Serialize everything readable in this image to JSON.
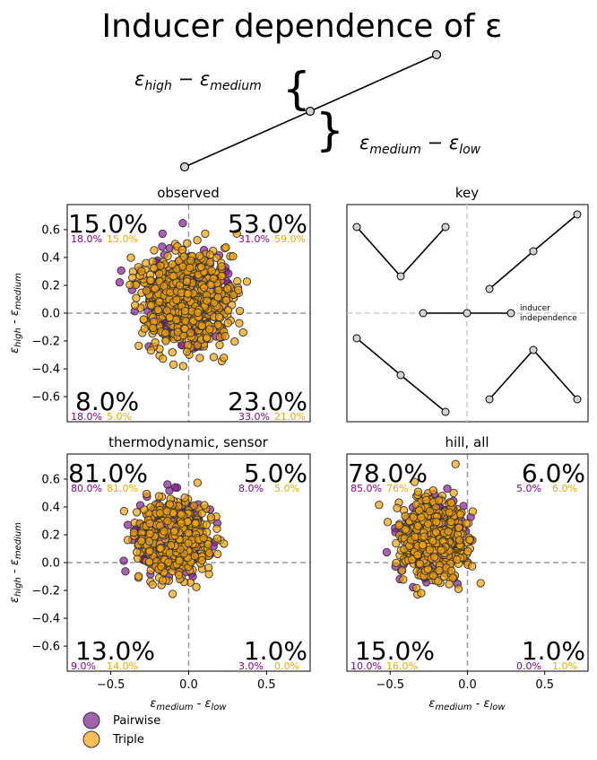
{
  "figure_title": "Inducer dependence of ε",
  "diagram": {
    "label_upper": "εhigh − εmedium",
    "label_lower": "εmedium − εlow",
    "brace_left": "{",
    "brace_right": "}"
  },
  "axis_labels": {
    "y": "εhigh - εmedium",
    "x": "εmedium - εlow"
  },
  "ticks": {
    "y": [
      "0.6",
      "0.4",
      "0.2",
      "0.0",
      "−0.2",
      "−0.4",
      "−0.6"
    ],
    "x": [
      "−0.5",
      "0.0",
      "0.5"
    ]
  },
  "key": {
    "title": "key",
    "inducer_label_1": "inducer",
    "inducer_label_2": "independence"
  },
  "legend": [
    {
      "label": "Pairwise",
      "color": "#7b1f8c"
    },
    {
      "label": "Triple",
      "color": "#f7a81b"
    }
  ],
  "colors": {
    "pairwise": "#8a1a98",
    "triple": "#f5a300",
    "pairwise_text": "#8b008b",
    "triple_text": "#f0a800"
  },
  "chart_data": [
    {
      "type": "scatter",
      "title": "observed",
      "xlim": [
        -0.78,
        0.78
      ],
      "ylim": [
        -0.78,
        0.78
      ],
      "xlabel": "",
      "ylabel": "εhigh - εmedium",
      "center": [
        0.0,
        0.1
      ],
      "spread": [
        0.15,
        0.17
      ],
      "quadrants": {
        "tl": {
          "total": "15.0%",
          "pairwise": "18.0%",
          "triple": "15.0%"
        },
        "tr": {
          "total": "53.0%",
          "pairwise": "31.0%",
          "triple": "59.0%"
        },
        "bl": {
          "total": "8.0%",
          "pairwise": "18.0%",
          "triple": "5.0%"
        },
        "br": {
          "total": "23.0%",
          "pairwise": "33.0%",
          "triple": "21.0%"
        }
      }
    },
    {
      "type": "scatter",
      "title": "thermodynamic, sensor",
      "xlim": [
        -0.78,
        0.78
      ],
      "ylim": [
        -0.78,
        0.78
      ],
      "xlabel": "εmedium - εlow",
      "ylabel": "εhigh - εmedium",
      "center": [
        -0.1,
        0.17
      ],
      "spread": [
        0.11,
        0.13
      ],
      "quadrants": {
        "tl": {
          "total": "81.0%",
          "pairwise": "80.0%",
          "triple": "81.0%"
        },
        "tr": {
          "total": "5.0%",
          "pairwise": "8.0%",
          "triple": "5.0%"
        },
        "bl": {
          "total": "13.0%",
          "pairwise": "9.0%",
          "triple": "14.0%"
        },
        "br": {
          "total": "1.0%",
          "pairwise": "3.0%",
          "triple": "0.0%"
        }
      }
    },
    {
      "type": "scatter",
      "title": "hill, all",
      "xlim": [
        -0.78,
        0.78
      ],
      "ylim": [
        -0.78,
        0.78
      ],
      "xlabel": "εmedium - εlow",
      "ylabel": "",
      "center": [
        -0.22,
        0.17
      ],
      "spread": [
        0.1,
        0.14
      ],
      "quadrants": {
        "tl": {
          "total": "78.0%",
          "pairwise": "85.0%",
          "triple": "76%"
        },
        "tr": {
          "total": "6.0%",
          "pairwise": "5.0%",
          "triple": "6.0%"
        },
        "bl": {
          "total": "15.0%",
          "pairwise": "10.0%",
          "triple": "16.0%"
        },
        "br": {
          "total": "1.0%",
          "pairwise": "0.0%",
          "triple": "1.0%"
        }
      }
    }
  ]
}
